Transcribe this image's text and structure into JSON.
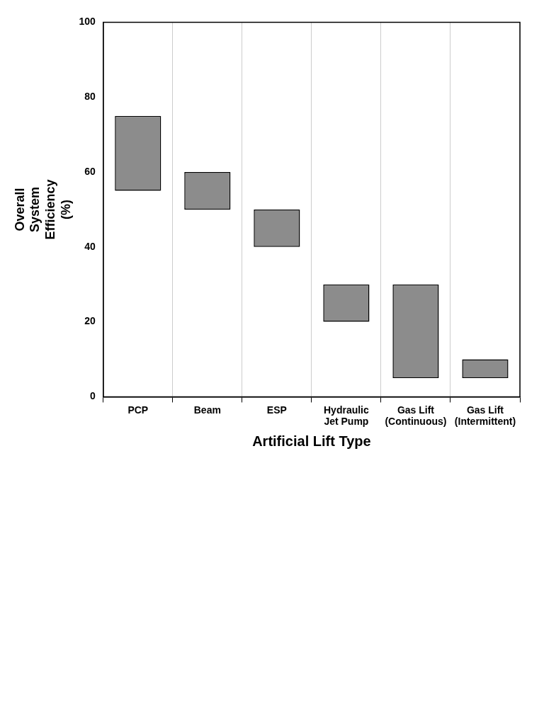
{
  "chart_data": {
    "type": "bar",
    "xlabel": "Artificial Lift Type",
    "ylabel": "Overall System Efficiency (%)",
    "categories": [
      "PCP",
      "Beam",
      "ESP",
      "Hydraulic Jet Pump",
      "Gas Lift (Continuous)",
      "Gas Lift (Intermittent)"
    ],
    "base": [
      55,
      50,
      40,
      20,
      5,
      5
    ],
    "values": [
      20,
      10,
      10,
      10,
      25,
      5
    ],
    "color": "#8c8c8c",
    "ylim": [
      0,
      100
    ],
    "yticks": [
      0,
      20,
      40,
      60,
      80,
      100
    ],
    "grid": "x"
  }
}
